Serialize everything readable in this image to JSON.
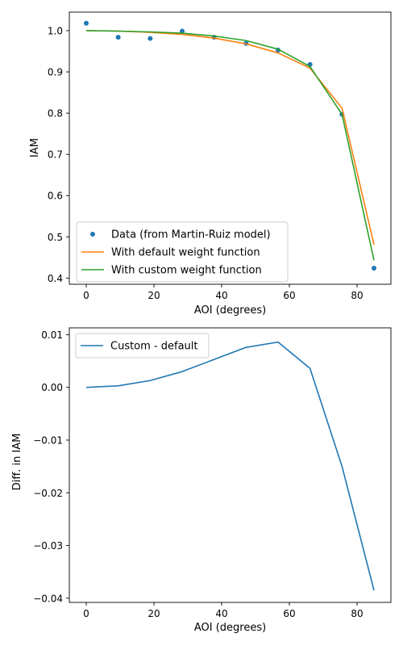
{
  "chart_data": [
    {
      "type": "line",
      "xlabel": "AOI (degrees)",
      "ylabel": "IAM",
      "xlim": [
        -5,
        90
      ],
      "ylim": [
        0.385,
        1.045
      ],
      "xticks": [
        0,
        20,
        40,
        60,
        80
      ],
      "xtick_labels": [
        "0",
        "20",
        "40",
        "60",
        "80"
      ],
      "yticks": [
        0.4,
        0.5,
        0.6,
        0.7,
        0.8,
        0.9,
        1.0
      ],
      "ytick_labels": [
        "0.4",
        "0.5",
        "0.6",
        "0.7",
        "0.8",
        "0.9",
        "1.0"
      ],
      "grid": false,
      "legend_position": "lower-left",
      "x": [
        0,
        9.44,
        18.89,
        28.33,
        37.78,
        47.22,
        56.67,
        66.11,
        75.56,
        85
      ],
      "series": [
        {
          "name": "Data (from Martin-Ruiz model)",
          "style": "points",
          "color": "#1f77b4",
          "values": [
            1.018,
            0.984,
            0.981,
            0.999,
            0.984,
            0.969,
            0.953,
            0.918,
            0.797,
            0.424
          ]
        },
        {
          "name": "With default weight function",
          "style": "line",
          "color": "#ff7f0e",
          "values": [
            1.0,
            0.999,
            0.996,
            0.991,
            0.982,
            0.968,
            0.946,
            0.909,
            0.812,
            0.481
          ]
        },
        {
          "name": "With custom weight function",
          "style": "line",
          "color": "#2ca02c",
          "values": [
            1.0,
            0.999,
            0.997,
            0.994,
            0.987,
            0.976,
            0.955,
            0.913,
            0.797,
            0.443
          ]
        }
      ]
    },
    {
      "type": "line",
      "xlabel": "AOI (degrees)",
      "ylabel": "Diff. in IAM",
      "xlim": [
        -5,
        90
      ],
      "ylim": [
        -0.0408,
        0.0113
      ],
      "xticks": [
        0,
        20,
        40,
        60,
        80
      ],
      "xtick_labels": [
        "0",
        "20",
        "40",
        "60",
        "80"
      ],
      "yticks": [
        -0.04,
        -0.03,
        -0.02,
        -0.01,
        0.0,
        0.01
      ],
      "ytick_labels": [
        "−0.04",
        "−0.03",
        "−0.02",
        "−0.01",
        "0.00",
        "0.01"
      ],
      "grid": false,
      "legend_position": "top-left",
      "x": [
        0,
        9.44,
        18.89,
        28.33,
        37.78,
        47.22,
        56.67,
        66.11,
        75.56,
        85
      ],
      "series": [
        {
          "name": "Custom - default",
          "style": "line",
          "color": "#1f77b4",
          "values": [
            0.0,
            0.0003,
            0.0013,
            0.003,
            0.0053,
            0.0076,
            0.0086,
            0.0036,
            -0.015,
            -0.0385
          ]
        }
      ]
    }
  ]
}
